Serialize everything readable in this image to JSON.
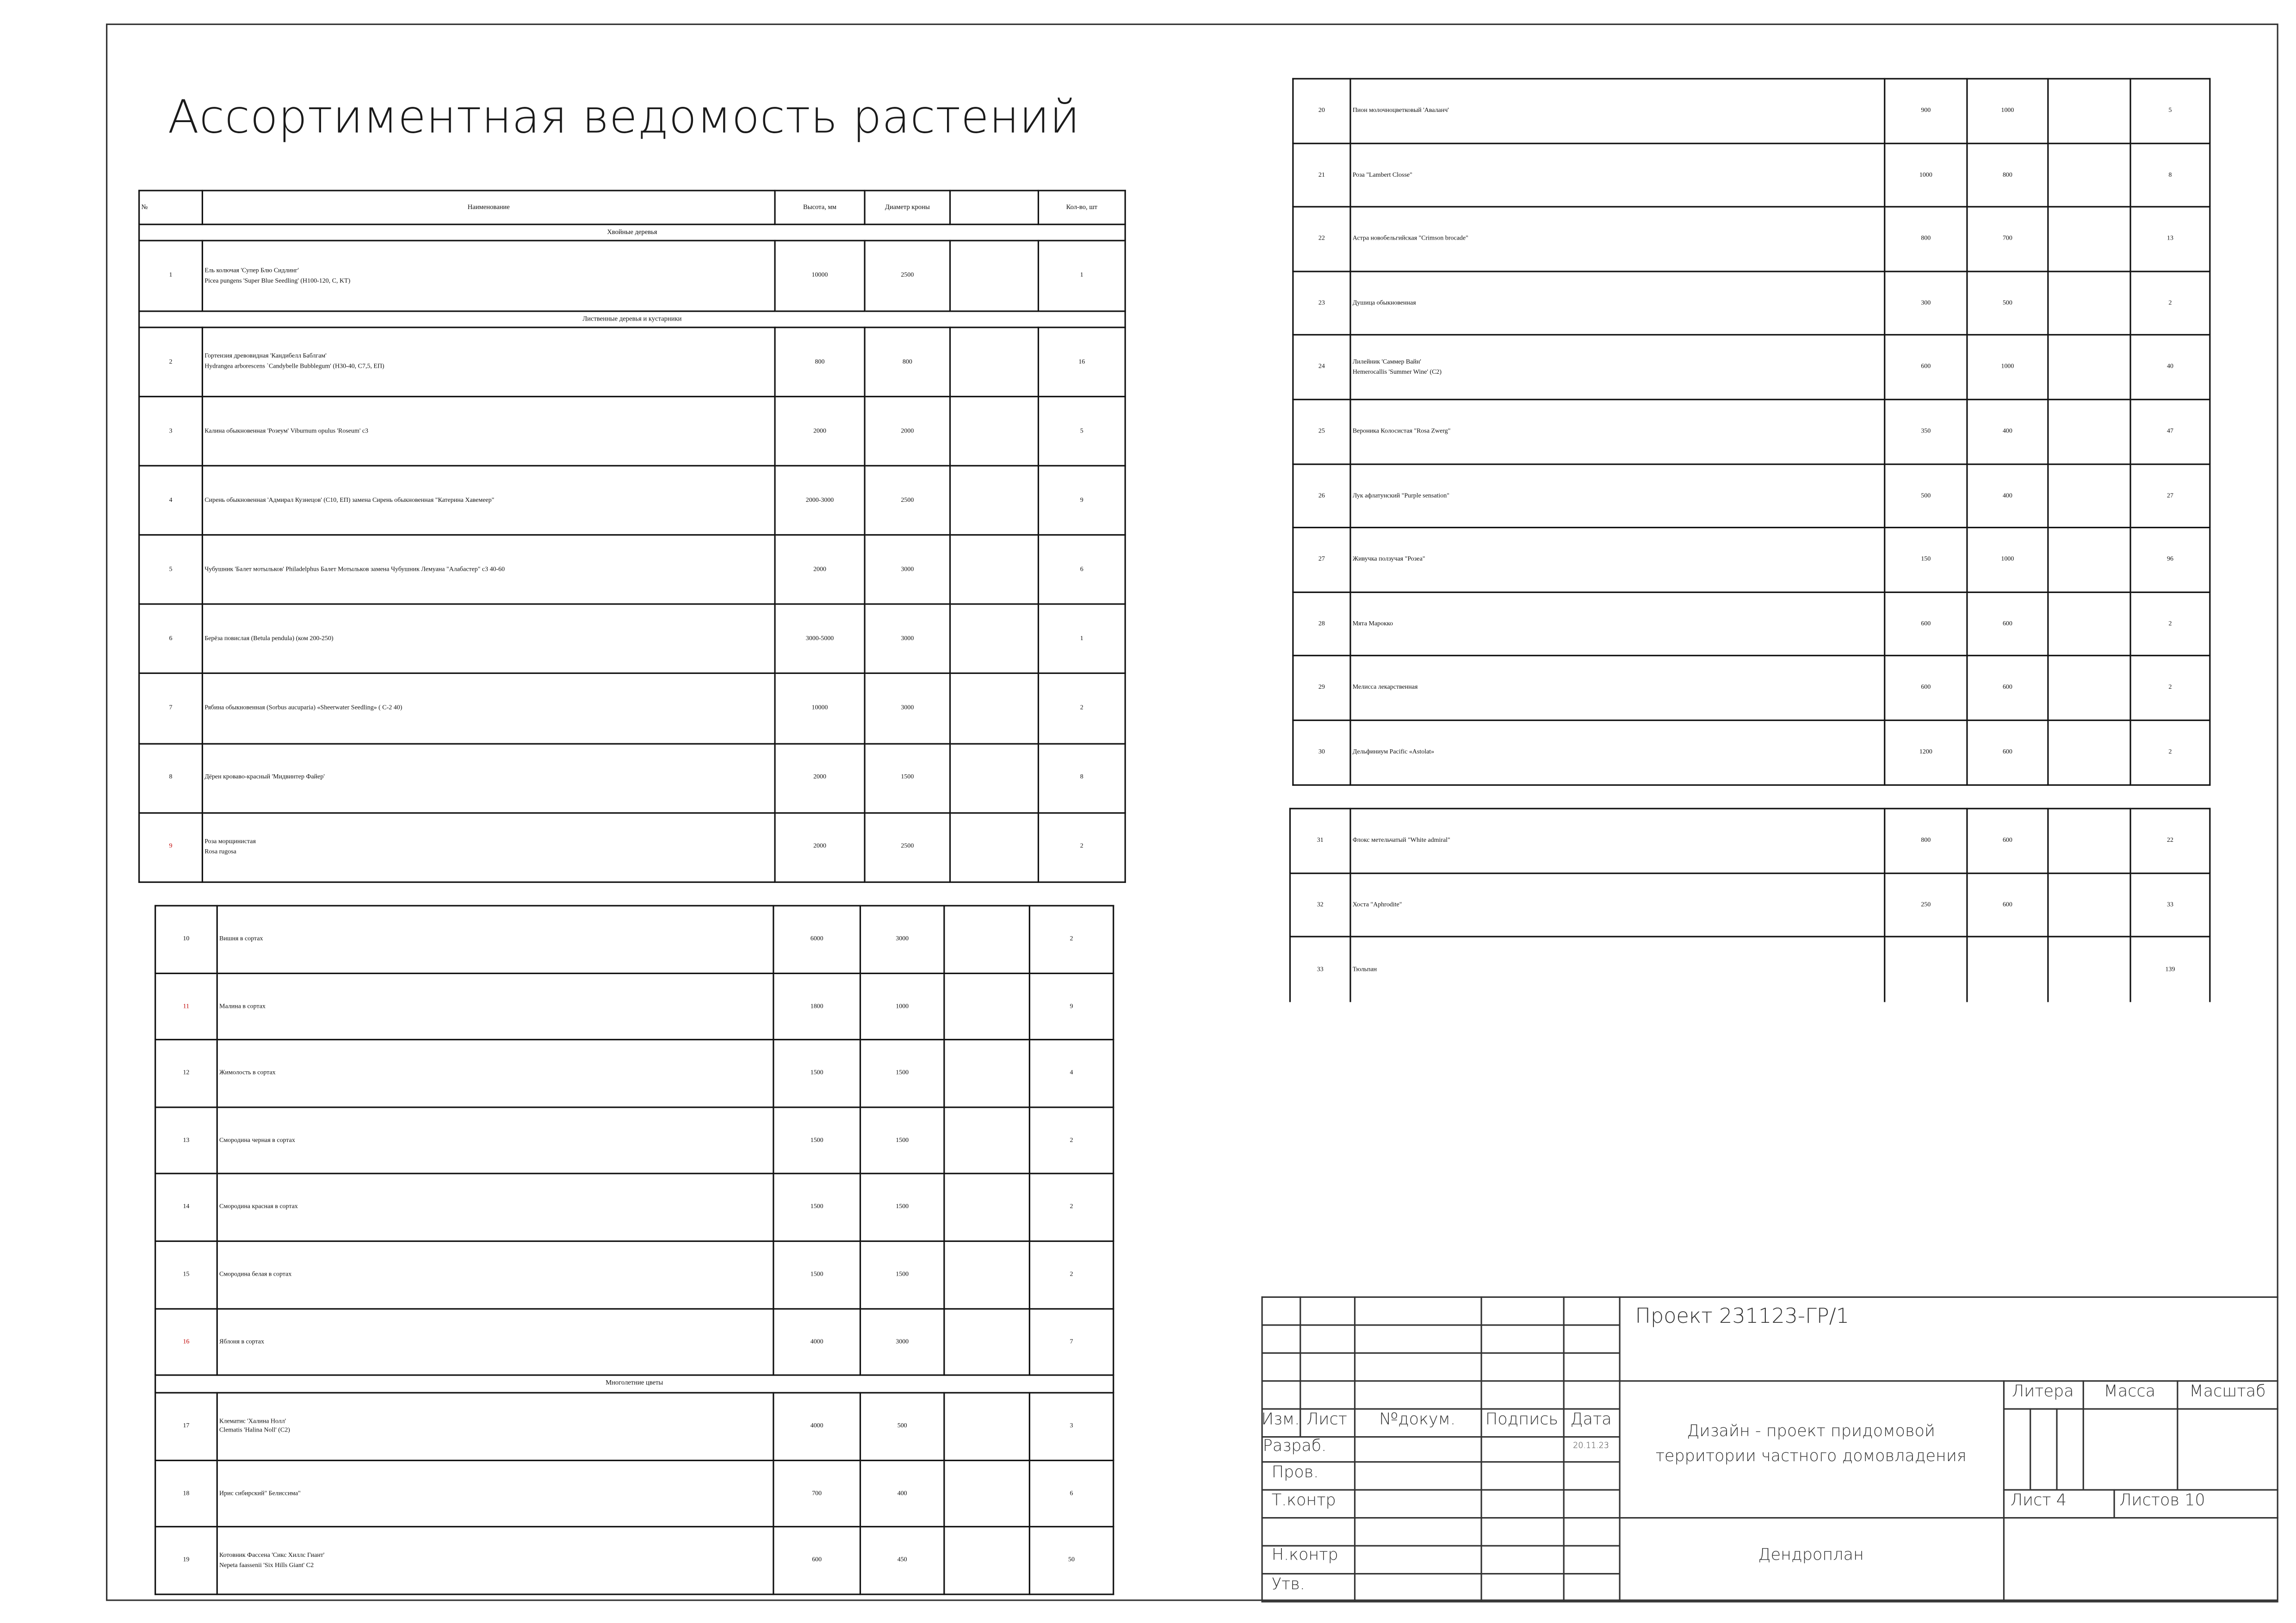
{
  "page_title": "Ассортиментная ведомость растений",
  "columns": {
    "num": "№",
    "name": "Наименование",
    "height": "Высота, мм",
    "diameter": "Диаметр кроны",
    "photo": "",
    "qty": "Кол-во, шт"
  },
  "accent_number_color": "#c00000",
  "tables": [
    {
      "header": true,
      "items": [
        {
          "type": "section",
          "label": "Хвойные деревья"
        },
        {
          "type": "row",
          "n": "1",
          "name": [
            "Ель колючая 'Супер Блю Сидлинг'",
            "Picea pungens 'Super Blue Seedling'  (H100-120, C, KT)"
          ],
          "h": "10000",
          "d": "2500",
          "q": "1",
          "photo": [
            "#6f95a6",
            "#3e6a5a"
          ]
        },
        {
          "type": "section",
          "label": "Лиственные деревья и кустарники"
        },
        {
          "type": "row",
          "n": "2",
          "name": [
            "Гортензия древовидная 'Кандибелл Баблгам'",
            "Hydrangea arborescens `Candybelle Bubblegum' (H30-40, C7,5, ЕП)"
          ],
          "h": "800",
          "d": "800",
          "q": "16",
          "photo": [
            "#c8a9c8",
            "#5f7f4a"
          ]
        },
        {
          "type": "row",
          "n": "3",
          "name": [
            "Калина обыкновенная 'Розеум' Viburnum opulus 'Roseum' с3"
          ],
          "h": "2000",
          "d": "2000",
          "q": "5",
          "photo": [
            "#f2f4ee",
            "#3e6b2e"
          ]
        },
        {
          "type": "row",
          "n": "4",
          "name": [
            "Сирень обыкновенная 'Адмирал Кузнецов'  (C10, ЕП) замена Сирень обыкновенная \"Катерина Хавемеер\""
          ],
          "h": "2000-3000",
          "d": "2500",
          "q": "9",
          "photo": [
            "#8a5fb0",
            "#7aa05a"
          ]
        },
        {
          "type": "row",
          "n": "5",
          "name": [
            "Чубушник 'Балет мотыльков' Philadelphus Балет Мотыльков замена Чубушник Лемуана \"Алабастер\" с3 40-60"
          ],
          "h": "2000",
          "d": "3000",
          "q": "6",
          "photo": [
            "#eef0e6",
            "#7d8c4c"
          ]
        },
        {
          "type": "row",
          "n": "6",
          "name": [
            "Берёза повислая (Betula pendula) (ком 200-250)"
          ],
          "h": "3000-5000",
          "d": "3000",
          "q": "1",
          "photo": [
            "#5e7a44",
            "#8fb26a"
          ]
        },
        {
          "type": "row",
          "n": "7",
          "name": [
            "Рябина обыкновенная (Sorbus aucuparia) «Sheerwater Seedling» ( С-2 40)"
          ],
          "h": "10000",
          "d": "3000",
          "q": "2",
          "photo": [
            "#d62a2a",
            "#3f6e2f"
          ]
        },
        {
          "type": "row",
          "n": "8",
          "name": [
            "Дёрен кроваво-красный 'Мидвинтер Файер'"
          ],
          "h": "2000",
          "d": "1500",
          "q": "8",
          "photo": [
            "#6c8a4c",
            "#e8eadc"
          ]
        },
        {
          "type": "row",
          "n": "9",
          "red": true,
          "name": [
            "Роза морщинистая",
            "Rosa rugosa"
          ],
          "h": "2000",
          "d": "2500",
          "q": "2",
          "photo": [
            "#e03fa0",
            "#6f8f5a"
          ]
        }
      ]
    },
    {
      "header": false,
      "items": [
        {
          "type": "row",
          "n": "10",
          "name": [
            "Вишня в сортах"
          ],
          "h": "6000",
          "d": "3000",
          "q": "2",
          "photo": [
            "#6e1420",
            "#6d9a48"
          ]
        },
        {
          "type": "row",
          "n": "11",
          "red": true,
          "name": [
            "Малина в сортах"
          ],
          "h": "1800",
          "d": "1000",
          "q": "9",
          "photo": [
            "#b82a3a",
            "#8a8f6a"
          ]
        },
        {
          "type": "row",
          "n": "12",
          "name": [
            "Жимолость в сортах"
          ],
          "h": "1500",
          "d": "1500",
          "q": "4",
          "photo": [
            "#3a5fa8",
            "#5aa03a"
          ]
        },
        {
          "type": "row",
          "n": "13",
          "name": [
            "Смородина черная в сортах"
          ],
          "h": "1500",
          "d": "1500",
          "q": "2",
          "photo": [
            "#151515",
            "#6fa03e"
          ]
        },
        {
          "type": "row",
          "n": "14",
          "name": [
            "Смородина красная в сортах"
          ],
          "h": "1500",
          "d": "1500",
          "q": "2",
          "photo": [
            "#d01e28",
            "#5f8a3a"
          ]
        },
        {
          "type": "row",
          "n": "15",
          "name": [
            "Смородина белая в сортах"
          ],
          "h": "1500",
          "d": "1500",
          "q": "2",
          "photo": [
            "#ece7b8",
            "#b9b27a"
          ]
        },
        {
          "type": "row",
          "n": "16",
          "red": true,
          "name": [
            "Яблоня в сортах"
          ],
          "h": "4000",
          "d": "3000",
          "q": "7",
          "photo": [
            "#4f7a33",
            "#8cc24e"
          ]
        },
        {
          "type": "section",
          "label": "Многолетние цветы"
        },
        {
          "type": "row",
          "n": "17",
          "name": [
            "Клематис 'Халина Нолл'",
            "Clematis 'Halina Noll' (C2)"
          ],
          "h": "4000",
          "d": "500",
          "q": "3",
          "photo": [
            "#f4f4f0",
            "#2f4f2a"
          ]
        },
        {
          "type": "row",
          "n": "18",
          "name": [
            "Ирис сибирский\" Белиссима\""
          ],
          "h": "700",
          "d": "400",
          "q": "6",
          "photo": [
            "#f2f2ee",
            "#3a5a2c"
          ]
        },
        {
          "type": "row",
          "n": "19",
          "name": [
            "Котовник Фассена 'Сикс Хиллс Гиант'",
            "Nepeta faassenii 'Six Hills Giant' C2"
          ],
          "h": "600",
          "d": "450",
          "q": "50",
          "photo": [
            "#8e86c8",
            "#6a7fa8"
          ]
        }
      ]
    },
    {
      "header": false,
      "items": [
        {
          "type": "row",
          "n": "20",
          "name": [
            "Пион молочноцветковый 'Аваланч'"
          ],
          "h": "900",
          "d": "1000",
          "q": "5",
          "photo": [
            "#f6f4ec",
            "#4a6a3a"
          ]
        },
        {
          "type": "row",
          "n": "21",
          "name": [
            "Роза \"Lambert Closse\""
          ],
          "h": "1000",
          "d": "800",
          "q": "8",
          "photo": [
            "#eaa0b8",
            "#2f4a2a"
          ]
        },
        {
          "type": "row",
          "n": "22",
          "name": [
            "Астра новобельгийская \"Crimson brocade\""
          ],
          "h": "800",
          "d": "700",
          "q": "13",
          "photo": [
            "#d0306a",
            "#3a5a2a"
          ]
        },
        {
          "type": "row",
          "n": "23",
          "name": [
            "Душица обыкновенная"
          ],
          "h": "300",
          "d": "500",
          "q": "2",
          "photo": [
            "#6a9a50",
            "#a87a9a"
          ]
        },
        {
          "type": "row",
          "n": "24",
          "name": [
            "Лилейник 'Саммер Вайн'",
            "Hemerocallis 'Summer Wine' (C2)"
          ],
          "h": "600",
          "d": "1000",
          "q": "40",
          "photo": [
            "#e04a78",
            "#4f7a3a"
          ]
        },
        {
          "type": "row",
          "n": "25",
          "name": [
            "Вероника Колосистая \"Rosa Zwerg\""
          ],
          "h": "350",
          "d": "400",
          "q": "47",
          "photo": [
            "#b05a8a",
            "#3a3a3a"
          ]
        },
        {
          "type": "row",
          "n": "26",
          "name": [
            "Лук афлатунский \"Purple sensation\""
          ],
          "h": "500",
          "d": "400",
          "q": "27",
          "photo": [
            "#8a3ab0",
            "#3f6a2a"
          ]
        },
        {
          "type": "row",
          "n": "27",
          "name": [
            "Живучка ползучая \"Розеа\""
          ],
          "h": "150",
          "d": "1000",
          "q": "96",
          "photo": [
            "#2f4a2a",
            "#c8c8d0"
          ]
        },
        {
          "type": "row",
          "n": "28",
          "name": [
            "Мята Марокко"
          ],
          "h": "600",
          "d": "600",
          "q": "2",
          "photo": [
            "#3f8a3a",
            "#62b050"
          ]
        },
        {
          "type": "row",
          "n": "29",
          "name": [
            "Мелисса лекарственная"
          ],
          "h": "600",
          "d": "600",
          "q": "2",
          "photo": [
            "#7ac83e",
            "#3f7a2a"
          ]
        },
        {
          "type": "row",
          "n": "30",
          "name": [
            "Дельфиниум Pacific «Astolat»"
          ],
          "h": "1200",
          "d": "600",
          "q": "2",
          "photo": [
            "#c070b8",
            "#8a4a9a"
          ]
        }
      ]
    },
    {
      "header": false,
      "items": [
        {
          "type": "row",
          "n": "31",
          "name": [
            "Флокс метельчатый  \"White admiral\""
          ],
          "h": "800",
          "d": "600",
          "q": "22",
          "photo": [
            "#f0f2ee",
            "#2f4a22"
          ]
        },
        {
          "type": "row",
          "n": "32",
          "name": [
            "Хоста \"Aphrodite\""
          ],
          "h": "250",
          "d": "600",
          "q": "33",
          "photo": [
            "#2f6a3a",
            "#8a8070"
          ]
        },
        {
          "type": "row",
          "n": "33",
          "name": [
            "Тюльпан"
          ],
          "h": "",
          "d": "",
          "q": "139",
          "photo": [
            "#e890b8",
            "#b8c860"
          ]
        }
      ]
    }
  ],
  "title_block": {
    "project": "Проект 231123-ГР/1",
    "col_izm": "Изм.",
    "col_list": "Лист",
    "col_doc": "№докум.",
    "col_sign": "Подпись",
    "col_date": "Дата",
    "razrab": "Разраб.",
    "razrab_date": "20.11.23",
    "prov": "Пров.",
    "tkontr": "Т.контр",
    "nkontr": "Н.контр",
    "utv": "Утв.",
    "description_line1": "Дизайн - проект придомовой",
    "description_line2": "территории частного домовладения",
    "litera": "Литера",
    "massa": "Масса",
    "masshtab": "Масштаб",
    "sheet": "Лист 4",
    "sheets_total": "Листов  10",
    "drawing_name": "Дендроплан"
  }
}
